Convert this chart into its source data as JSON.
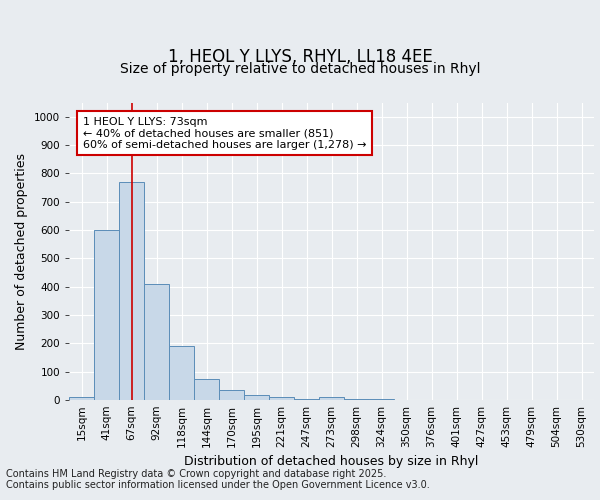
{
  "title_line1": "1, HEOL Y LLYS, RHYL, LL18 4EE",
  "title_line2": "Size of property relative to detached houses in Rhyl",
  "xlabel": "Distribution of detached houses by size in Rhyl",
  "ylabel": "Number of detached properties",
  "categories": [
    "15sqm",
    "41sqm",
    "67sqm",
    "92sqm",
    "118sqm",
    "144sqm",
    "170sqm",
    "195sqm",
    "221sqm",
    "247sqm",
    "273sqm",
    "298sqm",
    "324sqm",
    "350sqm",
    "376sqm",
    "401sqm",
    "427sqm",
    "453sqm",
    "479sqm",
    "504sqm",
    "530sqm"
  ],
  "values": [
    10,
    600,
    770,
    410,
    190,
    75,
    35,
    18,
    10,
    5,
    10,
    5,
    5,
    0,
    0,
    0,
    0,
    0,
    0,
    0,
    0
  ],
  "bar_color": "#c8d8e8",
  "bar_edge_color": "#5b8db8",
  "vline_x_index": 2,
  "vline_color": "#cc0000",
  "annotation_text": "1 HEOL Y LLYS: 73sqm\n← 40% of detached houses are smaller (851)\n60% of semi-detached houses are larger (1,278) →",
  "annotation_box_facecolor": "#ffffff",
  "annotation_box_edgecolor": "#cc0000",
  "ylim": [
    0,
    1050
  ],
  "yticks": [
    0,
    100,
    200,
    300,
    400,
    500,
    600,
    700,
    800,
    900,
    1000
  ],
  "background_color": "#e8ecf0",
  "plot_bg_color": "#e8ecf0",
  "footer_line1": "Contains HM Land Registry data © Crown copyright and database right 2025.",
  "footer_line2": "Contains public sector information licensed under the Open Government Licence v3.0.",
  "title_fontsize": 12,
  "subtitle_fontsize": 10,
  "axis_label_fontsize": 9,
  "tick_fontsize": 7.5,
  "annotation_fontsize": 8,
  "footer_fontsize": 7
}
